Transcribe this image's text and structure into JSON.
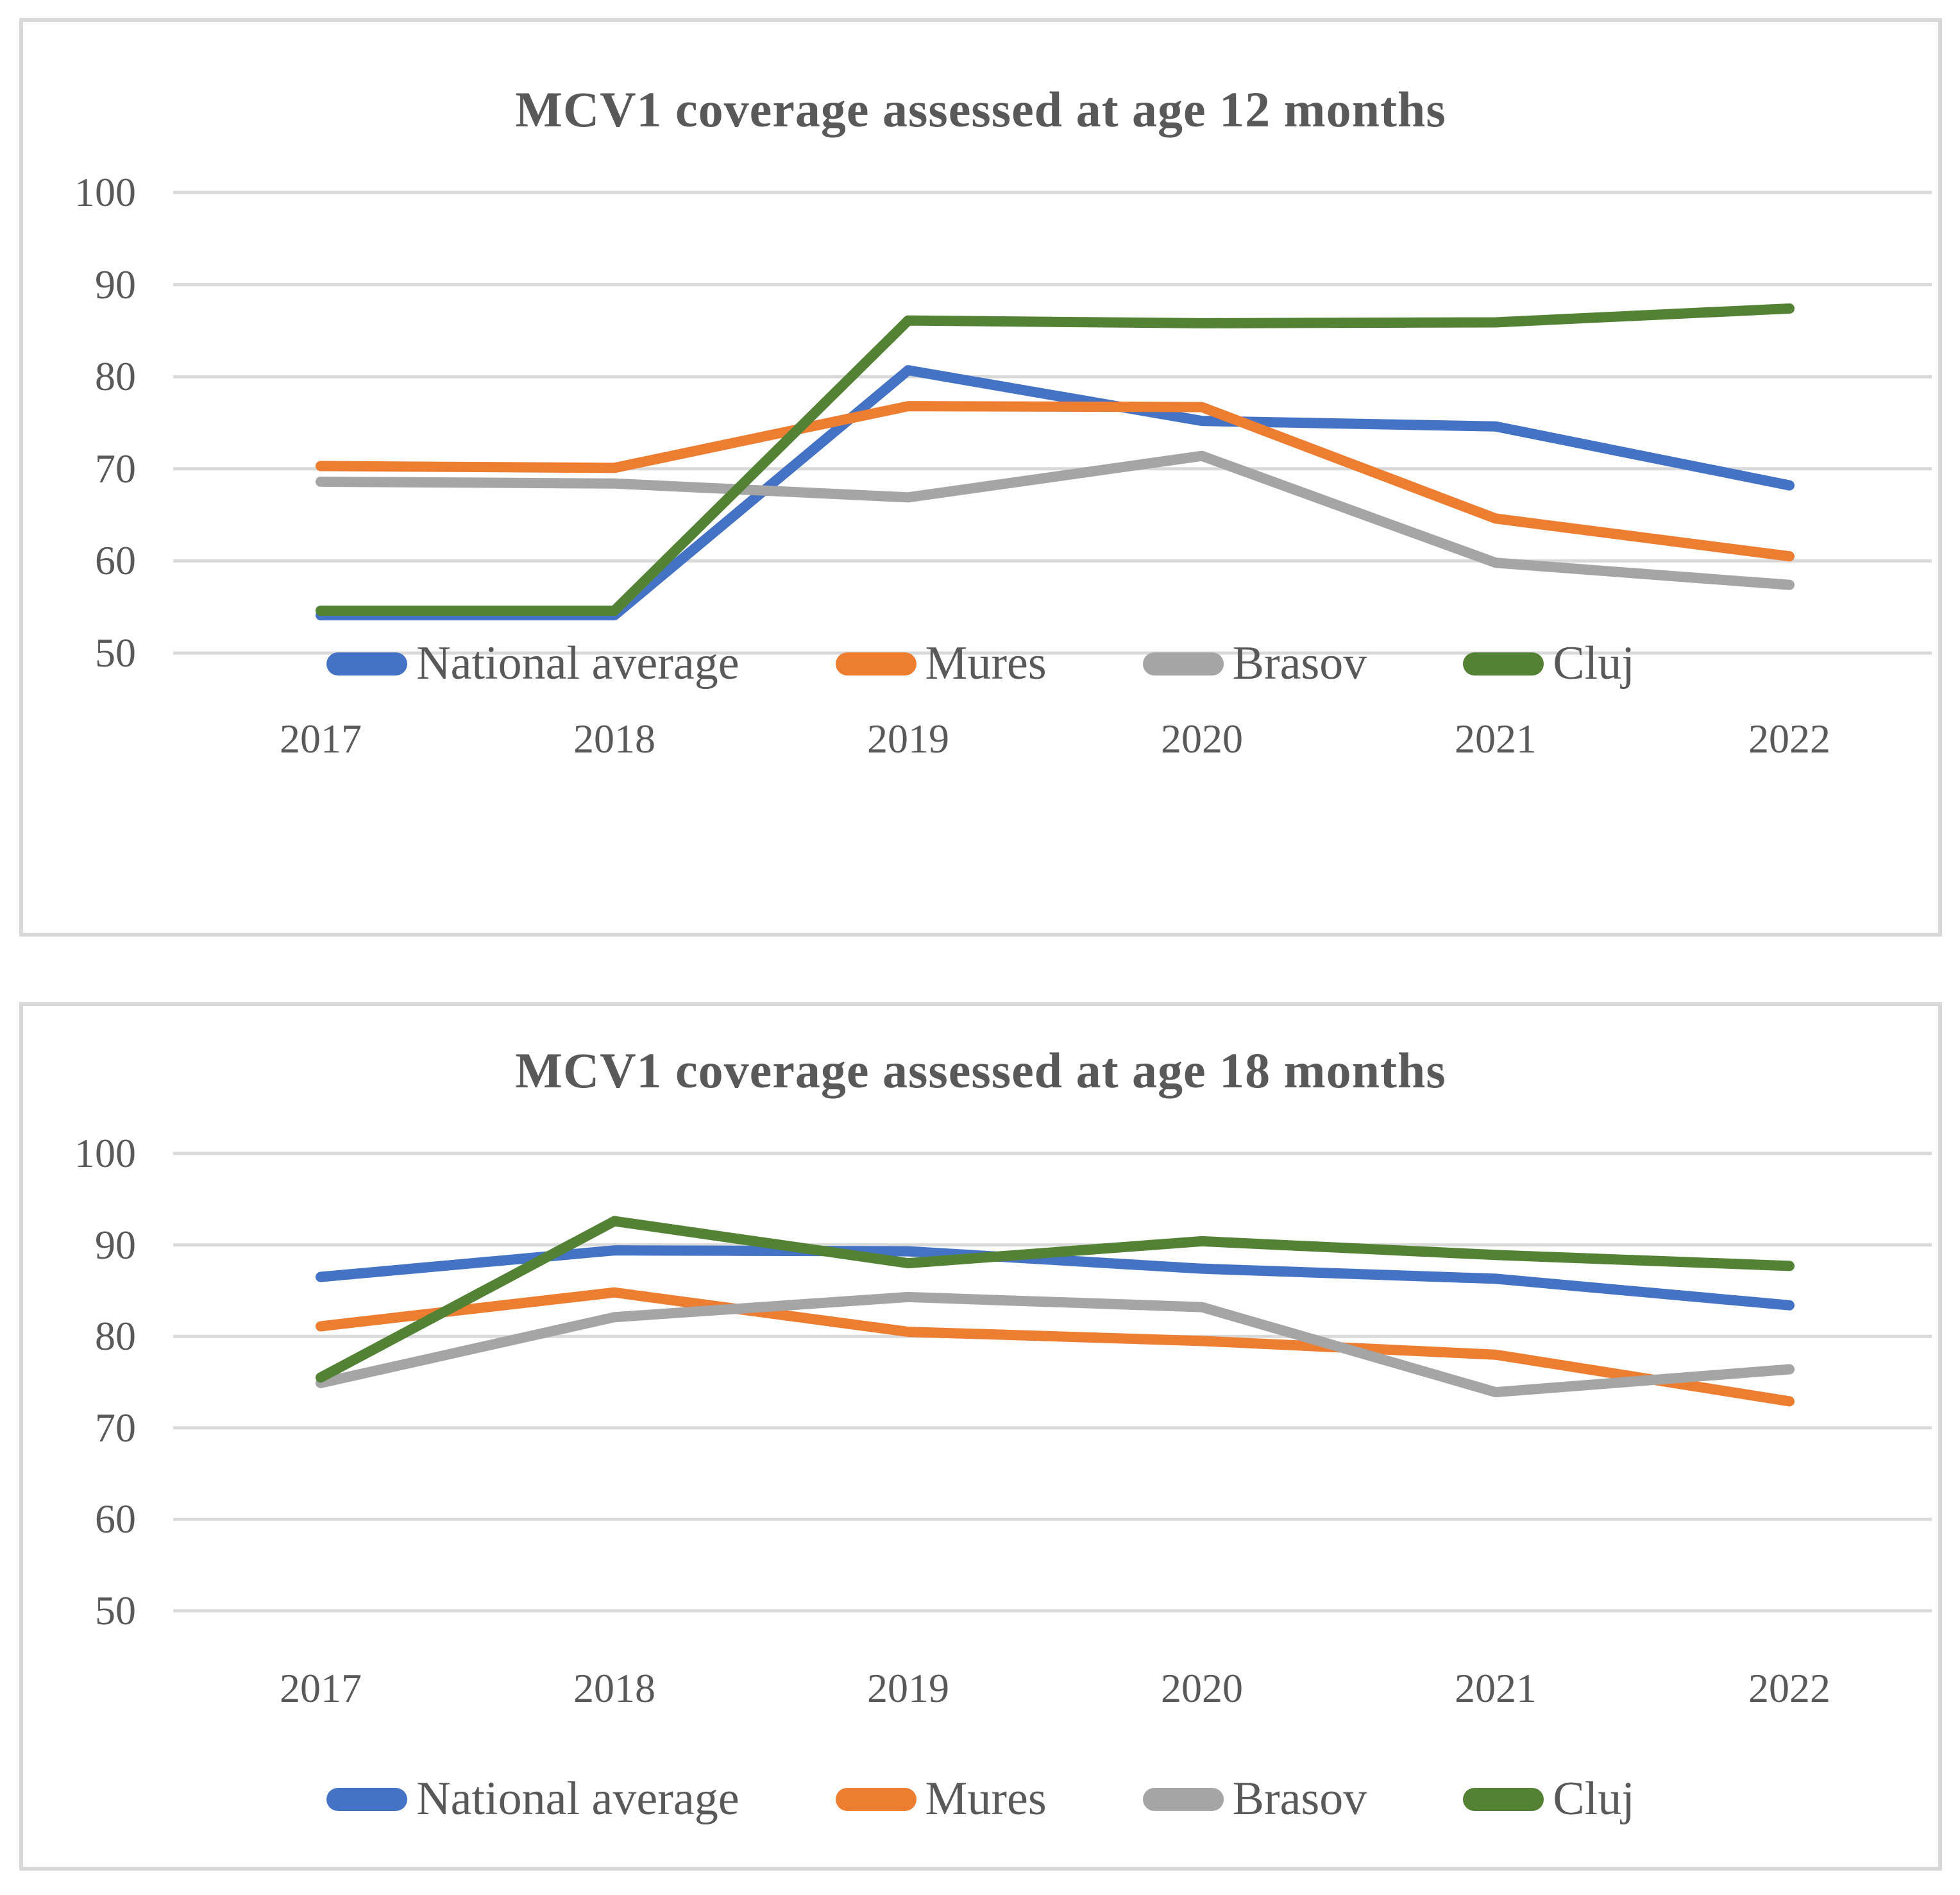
{
  "styles": {
    "background": "#FFFFFF",
    "text_color": "#595959",
    "grid_color": "#D9D9D9",
    "box_border_color": "#D9D9D9",
    "accent_blue": "#4472C4",
    "accent_orange": "#ED7D31",
    "accent_gray": "#A5A5A5",
    "accent_green": "#548235"
  },
  "chart_data": [
    {
      "type": "line",
      "title": "MCV1 coverage assessed at age 12 months",
      "categories": [
        "2017",
        "2018",
        "2019",
        "2020",
        "2021",
        "2022"
      ],
      "y_ticks": [
        100,
        90,
        80,
        70,
        60,
        50
      ],
      "ylim": [
        50,
        100
      ],
      "grid": true,
      "legend_position": "inside-bottom",
      "legend": [
        "National average",
        "Mures",
        "Brasov",
        "Cluj"
      ],
      "series": [
        {
          "name": "National average",
          "color": "#4472C4",
          "values": [
            54.1,
            54.1,
            80.7,
            75.2,
            74.6,
            68.2
          ]
        },
        {
          "name": "Mures",
          "color": "#ED7D31",
          "values": [
            70.3,
            70.1,
            76.8,
            76.7,
            64.6,
            60.5
          ]
        },
        {
          "name": "Brasov",
          "color": "#A5A5A5",
          "values": [
            68.6,
            68.4,
            66.9,
            71.4,
            59.8,
            57.4
          ]
        },
        {
          "name": "Cluj",
          "color": "#548235",
          "values": [
            54.6,
            54.6,
            86.1,
            85.8,
            85.9,
            87.4
          ]
        }
      ]
    },
    {
      "type": "line",
      "title": "MCV1 coverage assessed at age 18 months",
      "categories": [
        "2017",
        "2018",
        "2019",
        "2020",
        "2021",
        "2022"
      ],
      "y_ticks": [
        100,
        90,
        80,
        70,
        60,
        50
      ],
      "ylim": [
        50,
        100
      ],
      "grid": true,
      "legend_position": "below",
      "legend": [
        "National average",
        "Mures",
        "Brasov",
        "Cluj"
      ],
      "series": [
        {
          "name": "National average",
          "color": "#4472C4",
          "values": [
            86.5,
            89.4,
            89.3,
            87.4,
            86.3,
            83.4
          ]
        },
        {
          "name": "Mures",
          "color": "#ED7D31",
          "values": [
            81.1,
            84.8,
            80.5,
            79.5,
            78.0,
            72.9
          ]
        },
        {
          "name": "Brasov",
          "color": "#A5A5A5",
          "values": [
            74.9,
            82.1,
            84.3,
            83.2,
            73.9,
            76.4
          ]
        },
        {
          "name": "Cluj",
          "color": "#548235",
          "values": [
            75.5,
            92.6,
            88.0,
            90.4,
            88.9,
            87.7
          ]
        }
      ]
    }
  ]
}
